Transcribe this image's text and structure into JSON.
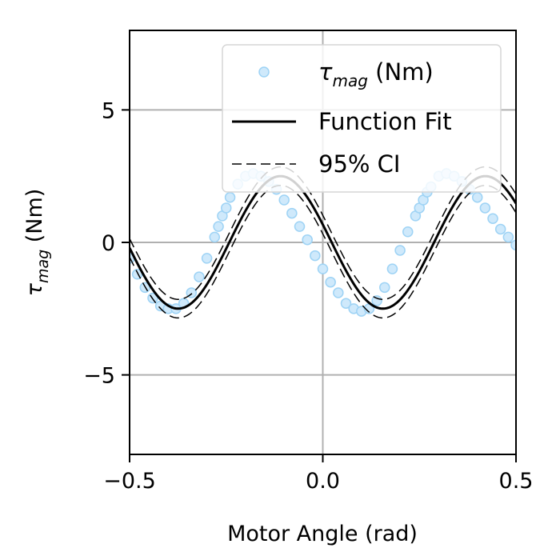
{
  "chart_data": {
    "type": "line",
    "xlabel": "Motor Angle (rad)",
    "ylabel_symbol": "τ",
    "ylabel_sub": "mag",
    "ylabel_unit": " (Nm)",
    "xlim": [
      -0.5,
      0.5
    ],
    "ylim": [
      -8,
      8
    ],
    "xticks": [
      -0.5,
      0.0,
      0.5
    ],
    "xtick_labels": [
      "−0.5",
      "0.0",
      "0.5"
    ],
    "yticks": [
      -5,
      0,
      5
    ],
    "ytick_labels": [
      "−5",
      "0",
      "5"
    ],
    "grid": true,
    "legend_position": "top-right",
    "series": [
      {
        "name": "τmag (Nm)",
        "legend_symbol": "τ",
        "legend_sub": "mag",
        "legend_unit": " (Nm)",
        "kind": "scatter",
        "color": "#cfe9fb",
        "edge": "#9ed3f5",
        "x": [
          -0.5,
          -0.48,
          -0.46,
          -0.44,
          -0.42,
          -0.4,
          -0.38,
          -0.36,
          -0.34,
          -0.32,
          -0.3,
          -0.28,
          -0.27,
          -0.26,
          -0.25,
          -0.24,
          -0.22,
          -0.2,
          -0.18,
          -0.16,
          -0.14,
          -0.12,
          -0.1,
          -0.08,
          -0.06,
          -0.04,
          -0.02,
          0.0,
          0.02,
          0.04,
          0.06,
          0.08,
          0.1,
          0.12,
          0.14,
          0.16,
          0.18,
          0.2,
          0.22,
          0.24,
          0.25,
          0.26,
          0.27,
          0.28,
          0.3,
          0.32,
          0.34,
          0.36,
          0.38,
          0.4,
          0.42,
          0.44,
          0.46,
          0.48,
          0.5
        ],
        "y": [
          -0.6,
          -1.2,
          -1.7,
          -2.1,
          -2.4,
          -2.5,
          -2.5,
          -2.3,
          -1.9,
          -1.3,
          -0.6,
          0.2,
          0.6,
          1.0,
          1.3,
          1.7,
          2.2,
          2.5,
          2.6,
          2.5,
          2.3,
          2.0,
          1.6,
          1.1,
          0.6,
          0.1,
          -0.5,
          -1.0,
          -1.5,
          -1.9,
          -2.3,
          -2.5,
          -2.6,
          -2.5,
          -2.2,
          -1.7,
          -1.0,
          -0.3,
          0.4,
          1.0,
          1.3,
          1.6,
          1.9,
          2.1,
          2.5,
          2.6,
          2.5,
          2.3,
          2.0,
          1.7,
          1.3,
          0.9,
          0.5,
          0.2,
          -0.1
        ]
      },
      {
        "name": "Function Fit",
        "kind": "line",
        "color": "#000000",
        "amplitude": 2.5,
        "period": 0.53,
        "phase_x0": 0.023
      },
      {
        "name": "95% CI",
        "kind": "dashed",
        "color": "#000000",
        "offset": 0.35
      }
    ]
  }
}
